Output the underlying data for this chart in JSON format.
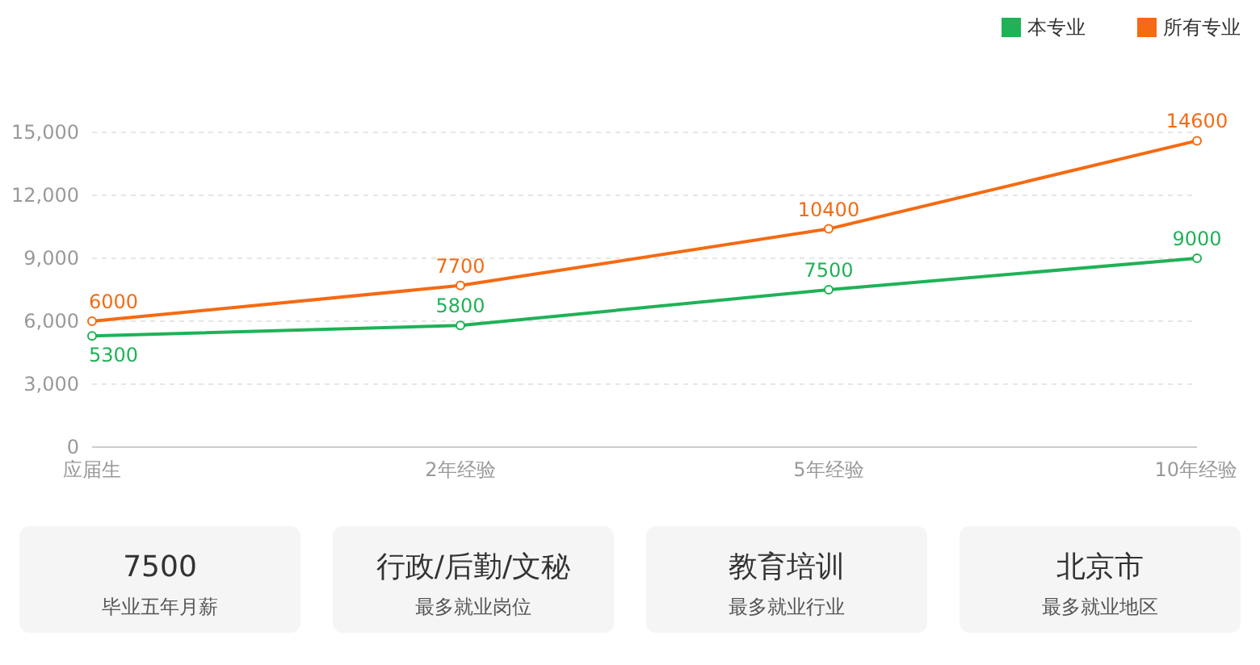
{
  "chart_data": [
    {
      "type": "line",
      "categories": [
        "应届生",
        "2年经验",
        "5年经验",
        "10年经验"
      ],
      "series": [
        {
          "name": "本专业",
          "color": "#1fb257",
          "values": [
            5300,
            5800,
            7500,
            9000
          ]
        },
        {
          "name": "所有专业",
          "color": "#f56a12",
          "values": [
            6000,
            7700,
            10400,
            14600
          ]
        }
      ],
      "ylim": [
        0,
        15000
      ],
      "yticks": [
        0,
        {
          "value": 3000,
          "label": "3,000"
        },
        {
          "value": 6000,
          "label": "6,000"
        },
        {
          "value": 9000,
          "label": "9,000"
        },
        {
          "value": 12000,
          "label": "12,000"
        },
        {
          "value": 15000,
          "label": "15,000"
        }
      ],
      "grid": "y",
      "legend": "top right",
      "marker": "circle",
      "data_labels": true
    },
    {
      "type": "other",
      "title": "7500",
      "subtitle": "毕业五年月薪"
    },
    {
      "type": "other",
      "title": "行政/后勤/文秘",
      "subtitle": "最多就业岗位"
    },
    {
      "type": "other",
      "title": "教育培训",
      "subtitle": "最多就业行业"
    },
    {
      "type": "other",
      "title": "北京市",
      "subtitle": "最多就业地区"
    }
  ]
}
